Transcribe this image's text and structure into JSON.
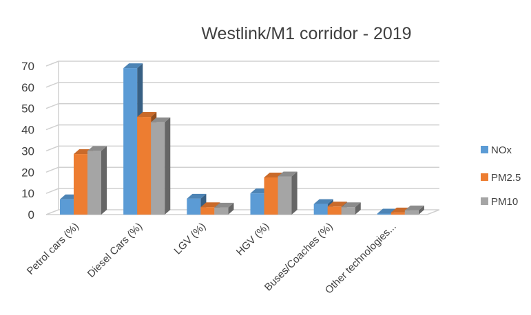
{
  "chart_data": {
    "type": "bar",
    "title": "Westlink/M1 corridor - 2019",
    "categories": [
      "Petrol cars (%)",
      "Diesel Cars (%)",
      "LGV (%)",
      "HGV (%)",
      "Buses/Coaches (%)",
      "Other technologies..."
    ],
    "series": [
      {
        "name": "NOx",
        "values": [
          7.2,
          69,
          7.5,
          10,
          5,
          0.5
        ],
        "color": "#5b9bd5"
      },
      {
        "name": "PM2.5",
        "values": [
          28.5,
          46,
          3.5,
          17.5,
          3.8,
          1
        ],
        "color": "#ed7d31"
      },
      {
        "name": "PM10",
        "values": [
          30,
          43.5,
          3.3,
          18,
          3.5,
          2
        ],
        "color": "#a5a5a5"
      }
    ],
    "yticks": [
      0,
      10,
      20,
      30,
      40,
      50,
      60,
      70
    ],
    "ylim": [
      0,
      70
    ],
    "grid": true,
    "legend_position": "right",
    "style": "3d-clustered-column"
  }
}
